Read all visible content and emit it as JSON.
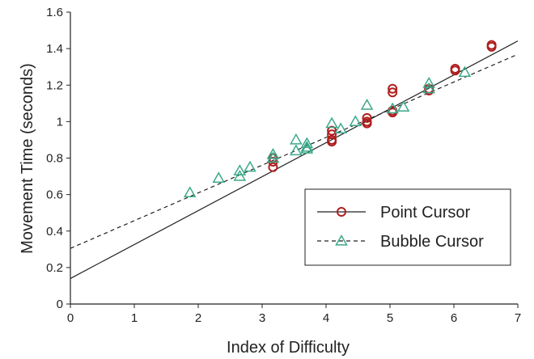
{
  "chart_data": {
    "type": "scatter",
    "title": "",
    "xlabel": "Index of Difficulty",
    "ylabel": "Movement Time (seconds)",
    "xlim": [
      0,
      7
    ],
    "ylim": [
      0,
      1.6
    ],
    "x_ticks": [
      "0",
      "1",
      "2",
      "3",
      "4",
      "5",
      "6",
      "7"
    ],
    "y_ticks": [
      "0",
      "0.2",
      "0.4",
      "0.6",
      "0.8",
      "1",
      "1.2",
      "1.4",
      "1.6"
    ],
    "grid": false,
    "legend_position": "bottom-right",
    "series": [
      {
        "name": "Point Cursor",
        "marker": "circle",
        "color": "#b01e1e",
        "points": [
          [
            3.17,
            0.8
          ],
          [
            3.17,
            0.78
          ],
          [
            3.17,
            0.75
          ],
          [
            4.09,
            0.95
          ],
          [
            4.09,
            0.93
          ],
          [
            4.09,
            0.9
          ],
          [
            4.09,
            0.89
          ],
          [
            4.64,
            1.02
          ],
          [
            4.64,
            1.0
          ],
          [
            4.64,
            0.99
          ],
          [
            5.04,
            1.18
          ],
          [
            5.04,
            1.16
          ],
          [
            5.04,
            1.06
          ],
          [
            5.04,
            1.05
          ],
          [
            5.61,
            1.18
          ],
          [
            5.61,
            1.17
          ],
          [
            6.02,
            1.29
          ],
          [
            6.02,
            1.28
          ],
          [
            6.59,
            1.42
          ],
          [
            6.59,
            1.41
          ]
        ],
        "fit": {
          "intercept": 0.14,
          "slope": 0.186,
          "style": "solid"
        }
      },
      {
        "name": "Bubble Cursor",
        "marker": "triangle",
        "color": "#3aa98a",
        "points": [
          [
            1.87,
            0.61
          ],
          [
            2.32,
            0.69
          ],
          [
            2.65,
            0.73
          ],
          [
            2.65,
            0.7
          ],
          [
            2.81,
            0.75
          ],
          [
            3.17,
            0.82
          ],
          [
            3.17,
            0.8
          ],
          [
            3.53,
            0.9
          ],
          [
            3.53,
            0.84
          ],
          [
            3.7,
            0.88
          ],
          [
            3.7,
            0.86
          ],
          [
            3.7,
            0.85
          ],
          [
            4.09,
            0.99
          ],
          [
            4.23,
            0.96
          ],
          [
            4.46,
            1.0
          ],
          [
            4.64,
            1.09
          ],
          [
            5.04,
            1.07
          ],
          [
            5.21,
            1.08
          ],
          [
            5.61,
            1.21
          ],
          [
            5.61,
            1.18
          ],
          [
            6.17,
            1.27
          ]
        ],
        "fit": {
          "intercept": 0.305,
          "slope": 0.152,
          "style": "dashed"
        }
      }
    ]
  }
}
